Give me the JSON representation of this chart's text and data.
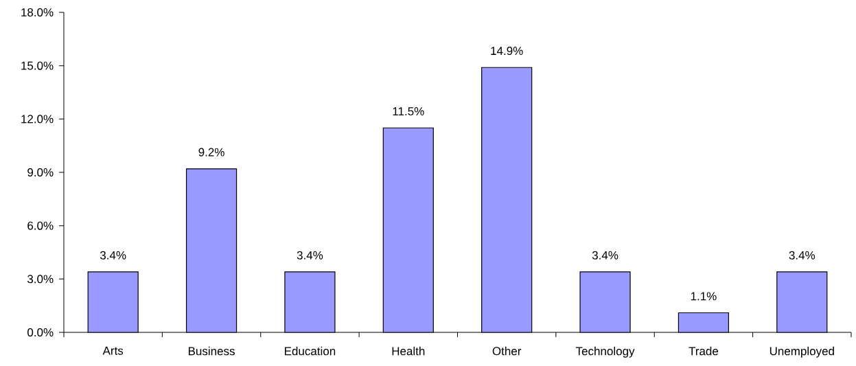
{
  "chart_data": {
    "type": "bar",
    "categories": [
      "Arts",
      "Business",
      "Education",
      "Health",
      "Other",
      "Technology",
      "Trade",
      "Unemployed"
    ],
    "values": [
      3.4,
      9.2,
      3.4,
      11.5,
      14.9,
      3.4,
      1.1,
      3.4
    ],
    "value_labels": [
      "3.4%",
      "9.2%",
      "3.4%",
      "11.5%",
      "14.9%",
      "3.4%",
      "1.1%",
      "3.4%"
    ],
    "color": "#9999ff",
    "ylim": [
      0,
      18
    ],
    "yticks": [
      {
        "value": 0,
        "label": "0.0%"
      },
      {
        "value": 3,
        "label": "3.0%"
      },
      {
        "value": 6,
        "label": "6.0%"
      },
      {
        "value": 9,
        "label": "9.0%"
      },
      {
        "value": 12,
        "label": "12.0%"
      },
      {
        "value": 15,
        "label": "15.0%"
      },
      {
        "value": 18,
        "label": "18.0%"
      }
    ]
  }
}
